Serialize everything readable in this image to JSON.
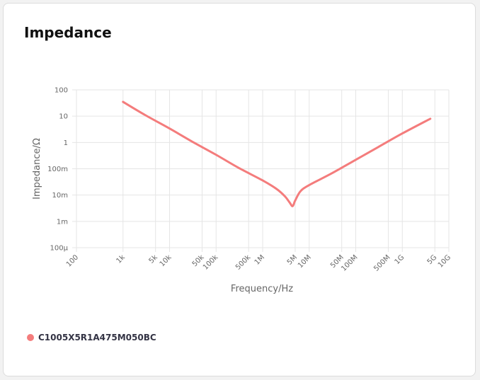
{
  "chart_data": {
    "type": "line",
    "title": "Impedance",
    "xlabel": "Frequency/Hz",
    "ylabel": "Impedance/Ω",
    "x_scale": "log",
    "y_scale": "log",
    "xlim": [
      100,
      10000000000
    ],
    "ylim": [
      0.0001,
      100
    ],
    "grid": true,
    "x_ticks": [
      {
        "value": 100,
        "label": "100"
      },
      {
        "value": 1000,
        "label": "1k"
      },
      {
        "value": 5000,
        "label": "5k"
      },
      {
        "value": 10000,
        "label": "10k"
      },
      {
        "value": 50000,
        "label": "50k"
      },
      {
        "value": 100000,
        "label": "100k"
      },
      {
        "value": 500000,
        "label": "500k"
      },
      {
        "value": 1000000,
        "label": "1M"
      },
      {
        "value": 5000000,
        "label": "5M"
      },
      {
        "value": 10000000,
        "label": "10M"
      },
      {
        "value": 50000000,
        "label": "50M"
      },
      {
        "value": 100000000,
        "label": "100M"
      },
      {
        "value": 500000000,
        "label": "500M"
      },
      {
        "value": 1000000000,
        "label": "1G"
      },
      {
        "value": 5000000000,
        "label": "5G"
      },
      {
        "value": 10000000000,
        "label": "10G"
      }
    ],
    "y_ticks": [
      {
        "value": 100,
        "label": "100"
      },
      {
        "value": 10,
        "label": "10"
      },
      {
        "value": 1,
        "label": "1"
      },
      {
        "value": 0.1,
        "label": "100m"
      },
      {
        "value": 0.01,
        "label": "10m"
      },
      {
        "value": 0.001,
        "label": "1m"
      },
      {
        "value": 0.0001,
        "label": "100µ"
      }
    ],
    "series": [
      {
        "name": "C1005X5R1A475M050BC",
        "color": "#f47c7c",
        "x": [
          1000,
          3000,
          10000,
          30000,
          100000,
          300000,
          1000000,
          2000000,
          3000000,
          3800000,
          4400000,
          5000000,
          6500000,
          10000000,
          30000000,
          100000000,
          300000000,
          1000000000,
          4000000000
        ],
        "y": [
          35,
          11,
          3.4,
          1.1,
          0.34,
          0.11,
          0.036,
          0.017,
          0.009,
          0.0052,
          0.0038,
          0.0062,
          0.014,
          0.024,
          0.066,
          0.22,
          0.66,
          2.2,
          8
        ]
      }
    ]
  },
  "legend": {
    "color": "#f47c7c"
  }
}
